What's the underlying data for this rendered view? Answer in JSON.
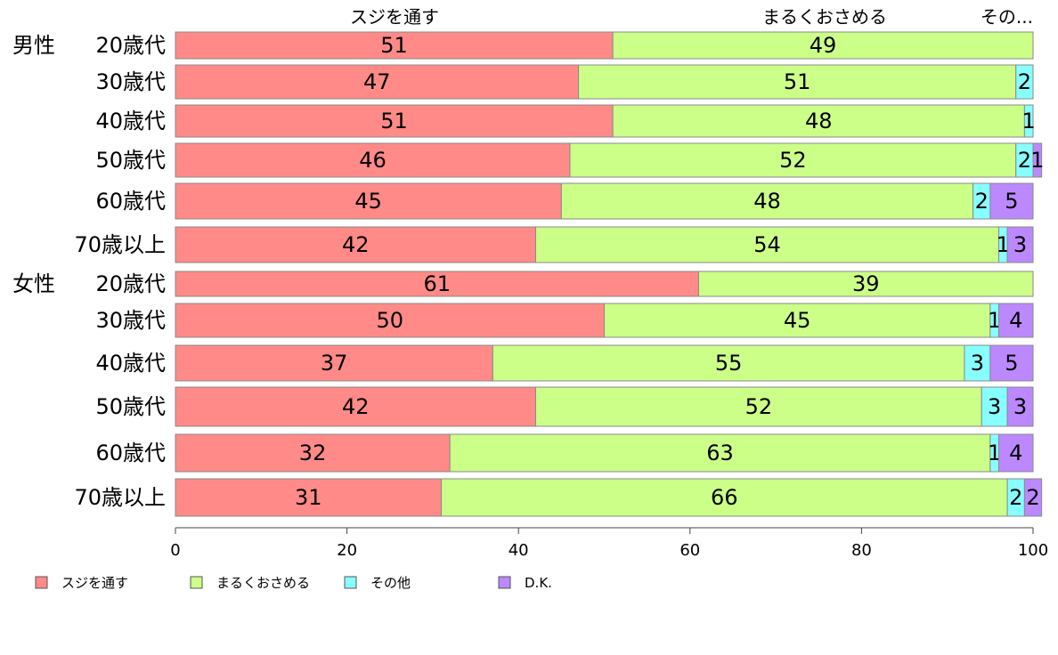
{
  "chart_data": {
    "type": "bar",
    "orientation": "horizontal",
    "stacked": true,
    "percent_stacked": true,
    "group_labels": [
      "男性",
      "女性"
    ],
    "categories": [
      "20歳代",
      "30歳代",
      "40歳代",
      "50歳代",
      "60歳代",
      "70歳以上",
      "20歳代",
      "30歳代",
      "40歳代",
      "50歳代",
      "60歳代",
      "70歳以上"
    ],
    "series": [
      {
        "name": "スジを通す",
        "color": "#ff8a87",
        "values": [
          51,
          47,
          51,
          46,
          45,
          42,
          61,
          50,
          37,
          42,
          32,
          31
        ]
      },
      {
        "name": "まるくおさめる",
        "color": "#ccff88",
        "values": [
          49,
          51,
          48,
          52,
          48,
          54,
          39,
          45,
          55,
          52,
          63,
          66
        ]
      },
      {
        "name": "その他",
        "color": "#88ffff",
        "values": [
          0,
          2,
          1,
          2,
          2,
          1,
          0,
          1,
          3,
          3,
          1,
          2
        ]
      },
      {
        "name": "D.K.",
        "color": "#bb88ff",
        "values": [
          0,
          0,
          0,
          1,
          5,
          3,
          0,
          4,
          5,
          3,
          4,
          2
        ]
      }
    ],
    "top_labels": [
      "スジを通す",
      "まるくおさめる",
      "その..."
    ],
    "xlim": [
      0,
      100
    ],
    "x_ticks": [
      0,
      20,
      40,
      60,
      80,
      100
    ],
    "grid": false,
    "legend_position": "bottom"
  }
}
